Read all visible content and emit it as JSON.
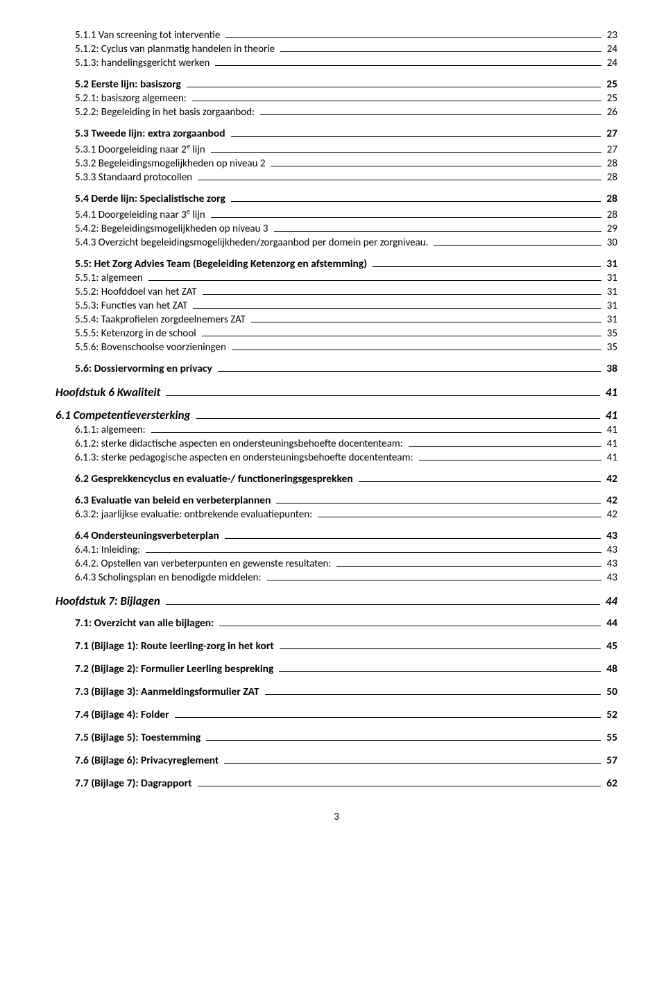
{
  "page_number": "3",
  "entries": [
    {
      "label": "5.1.1     Van screening tot interventie",
      "page": "23",
      "indent": 1,
      "style": "normal",
      "space_before": 0
    },
    {
      "label": "5.1.2: Cyclus van planmatig handelen in theorie",
      "page": "24",
      "indent": 1,
      "style": "normal",
      "space_before": 0
    },
    {
      "label": "5.1.3: handelingsgericht werken",
      "page": "24",
      "indent": 1,
      "style": "normal",
      "space_before": 0
    },
    {
      "label": "5.2     Eerste lijn: basiszorg",
      "page": "25",
      "indent": 1,
      "style": "bold",
      "space_before": 8
    },
    {
      "label": "5.2.1: basiszorg algemeen:",
      "page": "25",
      "indent": 1,
      "style": "normal",
      "space_before": 0
    },
    {
      "label": "5.2.2: Begeleiding in het basis zorgaanbod:",
      "page": "26",
      "indent": 1,
      "style": "normal",
      "space_before": 0
    },
    {
      "label": "5.3     Tweede lijn: extra zorgaanbod",
      "page": "27",
      "indent": 1,
      "style": "bold",
      "space_before": 8
    },
    {
      "label_html": "5.3.1     Doorgeleiding naar 2<span class=\"sup\">e</span> lijn",
      "page": "27",
      "indent": 1,
      "style": "normal",
      "space_before": 0
    },
    {
      "label": "5.3.2     Begeleidingsmogelijkheden op niveau 2",
      "page": "28",
      "indent": 1,
      "style": "normal",
      "space_before": 0
    },
    {
      "label": "5.3.3     Standaard protocollen",
      "page": "28",
      "indent": 1,
      "style": "normal",
      "space_before": 0
    },
    {
      "label": "5.4     Derde lijn:  Specialistische zorg",
      "page": "28",
      "indent": 1,
      "style": "bold",
      "space_before": 8
    },
    {
      "label_html": "5.4.1     Doorgeleiding naar 3<span class=\"sup\">e</span> lijn",
      "page": "28",
      "indent": 1,
      "style": "normal",
      "space_before": 0
    },
    {
      "label": "5.4.2: Begeleidingsmogelijkheden op niveau 3",
      "page": "29",
      "indent": 1,
      "style": "normal",
      "space_before": 0
    },
    {
      "label": "5.4.3 Overzicht begeleidingsmogelijkheden/zorgaanbod per domein per zorgniveau.",
      "page": "30",
      "indent": 1,
      "style": "normal",
      "space_before": 0
    },
    {
      "label": "5.5:  Het Zorg Advies Team (Begeleiding Ketenzorg en afstemming)",
      "page": "31",
      "indent": 1,
      "style": "bold",
      "space_before": 8
    },
    {
      "label": "5.5.1: algemeen",
      "page": "31",
      "indent": 1,
      "style": "normal",
      "space_before": 0
    },
    {
      "label": "5.5.2: Hoofddoel van het ZAT",
      "page": "31",
      "indent": 1,
      "style": "normal",
      "space_before": 0
    },
    {
      "label": "5.5.3: Functies van het ZAT",
      "page": "31",
      "indent": 1,
      "style": "normal",
      "space_before": 0
    },
    {
      "label": "5.5.4: Taakprofielen zorgdeelnemers ZAT",
      "page": "31",
      "indent": 1,
      "style": "normal",
      "space_before": 0
    },
    {
      "label": "5.5.5: Ketenzorg in de school",
      "page": "35",
      "indent": 1,
      "style": "normal",
      "space_before": 0
    },
    {
      "label": "5.5.6: Bovenschoolse voorzieningen",
      "page": "35",
      "indent": 1,
      "style": "normal",
      "space_before": 0
    },
    {
      "label": "5.6: Dossiervorming en privacy",
      "page": "38",
      "indent": 1,
      "style": "bold",
      "space_before": 8
    },
    {
      "label": "Hoofdstuk 6       Kwaliteit",
      "page": "41",
      "indent": 0,
      "style": "italic",
      "space_before": 10
    },
    {
      "label": "6.1     Competentieversterking",
      "page": "41",
      "indent": 0,
      "style": "italic",
      "space_before": 8
    },
    {
      "label": "6.1.1: algemeen:",
      "page": "41",
      "indent": 1,
      "style": "normal",
      "space_before": 0
    },
    {
      "label": "6.1.2: sterke didactische aspecten en ondersteuningsbehoefte docententeam:",
      "page": "41",
      "indent": 1,
      "style": "normal",
      "space_before": 0
    },
    {
      "label": "6.1.3: sterke pedagogische aspecten en ondersteuningsbehoefte docententeam:",
      "page": "41",
      "indent": 1,
      "style": "normal",
      "space_before": 0
    },
    {
      "label": "6.2      Gesprekkencyclus en evaluatie-/ functioneringsgesprekken",
      "page": "42",
      "indent": 1,
      "style": "bold",
      "space_before": 8
    },
    {
      "label": "6.3      Evaluatie van beleid en verbeterplannen",
      "page": "42",
      "indent": 1,
      "style": "bold",
      "space_before": 8
    },
    {
      "label": "6.3.2: jaarlijkse evaluatie: ontbrekende evaluatiepunten:",
      "page": "42",
      "indent": 1,
      "style": "normal",
      "space_before": 0
    },
    {
      "label": "6.4      Ondersteuningsverbeterplan",
      "page": "43",
      "indent": 1,
      "style": "bold",
      "space_before": 8
    },
    {
      "label": "6.4.1: Inleiding:",
      "page": "43",
      "indent": 1,
      "style": "normal",
      "space_before": 0
    },
    {
      "label": "6.4.2.     Opstellen van verbeterpunten en gewenste resultaten:",
      "page": "43",
      "indent": 1,
      "style": "normal",
      "space_before": 0
    },
    {
      "label": "6.4.3     Scholingsplan en benodigde middelen:",
      "page": "43",
      "indent": 1,
      "style": "normal",
      "space_before": 0
    },
    {
      "label": "Hoofdstuk 7: Bijlagen",
      "page": "44",
      "indent": 0,
      "style": "italic",
      "space_before": 10
    },
    {
      "label": "7.1: Overzicht van alle bijlagen:",
      "page": "44",
      "indent": 1,
      "style": "bold",
      "space_before": 8
    },
    {
      "label": "7.1 (Bijlage 1):  Route leerling-zorg in het kort",
      "page": "45",
      "indent": 1,
      "style": "bold",
      "space_before": 10
    },
    {
      "label": "7.2 (Bijlage 2): Formulier Leerling bespreking",
      "page": "48",
      "indent": 1,
      "style": "bold",
      "space_before": 10
    },
    {
      "label": "7.3 (Bijlage 3): Aanmeldingsformulier ZAT",
      "page": "50",
      "indent": 1,
      "style": "bold",
      "space_before": 10
    },
    {
      "label": "7.4 (Bijlage 4): Folder",
      "page": "52",
      "indent": 1,
      "style": "bold",
      "space_before": 10
    },
    {
      "label": "7.5 (Bijlage 5): Toestemming",
      "page": "55",
      "indent": 1,
      "style": "bold",
      "space_before": 10
    },
    {
      "label": "7.6 (Bijlage 6): Privacyreglement",
      "page": "57",
      "indent": 1,
      "style": "bold",
      "space_before": 10
    },
    {
      "label": "7.7 (Bijlage 7): Dagrapport",
      "page": "62",
      "indent": 1,
      "style": "bold",
      "space_before": 10
    }
  ]
}
